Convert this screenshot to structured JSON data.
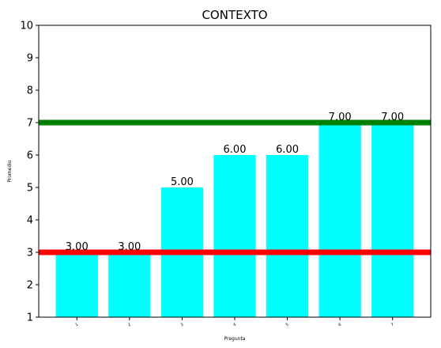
{
  "chart_data": {
    "type": "bar",
    "title": "CONTEXTO",
    "xlabel": "Pregunta",
    "ylabel": "Promedio",
    "categories": [
      "1",
      "2",
      "3",
      "4",
      "5",
      "6",
      "7"
    ],
    "values": [
      3.0,
      3.0,
      5.0,
      6.0,
      6.0,
      7.0,
      7.0
    ],
    "data_labels": [
      "3.00",
      "3.00",
      "5.00",
      "6.00",
      "6.00",
      "7.00",
      "7.00"
    ],
    "ylim": [
      1,
      10
    ],
    "yticks": [
      "1",
      "2",
      "3",
      "4",
      "5",
      "6",
      "7",
      "8",
      "9",
      "10"
    ],
    "grid": false,
    "bar_color": "#00ffff",
    "reference_lines": [
      {
        "y": 3.0,
        "color": "#ff0000"
      },
      {
        "y": 7.0,
        "color": "#008000"
      }
    ]
  }
}
